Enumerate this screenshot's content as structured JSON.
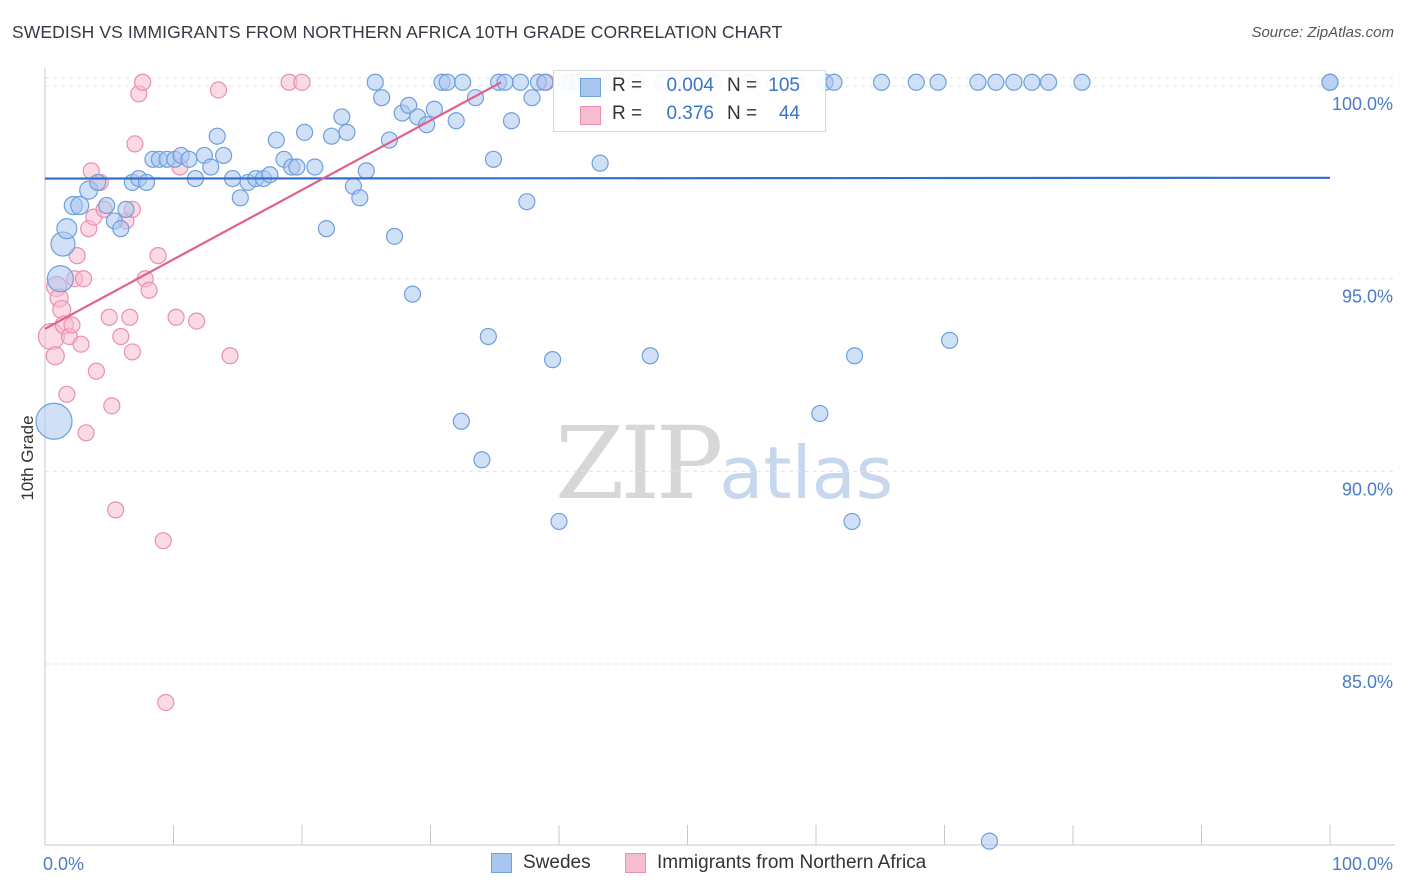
{
  "header": {
    "title": "SWEDISH VS IMMIGRANTS FROM NORTHERN AFRICA 10TH GRADE CORRELATION CHART",
    "source": "Source: ZipAtlas.com"
  },
  "legend": {
    "rows": [
      {
        "r_label": "R =",
        "r_value": "0.004",
        "n_label": "N =",
        "n_value": "105"
      },
      {
        "r_label": "R =",
        "r_value": "0.376",
        "n_label": "N =",
        "n_value": "44"
      }
    ]
  },
  "bottom_legend": {
    "swedes": "Swedes",
    "immigrants": "Immigrants from Northern Africa"
  },
  "watermark": {
    "zip": "ZIP",
    "atlas": "atlas"
  },
  "colors": {
    "swedes_fill": "#a9c6ee",
    "swedes_stroke": "#6f9fdc",
    "swedes_line": "#2f6fc9",
    "imm_fill": "#f6bcd0",
    "imm_stroke": "#ea8fb0",
    "imm_line": "#e0608f",
    "tick_text": "#4a7cc9",
    "grid": "#e3e3e3"
  },
  "chart_data": {
    "type": "scatter",
    "title": "SWEDISH VS IMMIGRANTS FROM NORTHERN AFRICA 10TH GRADE CORRELATION CHART",
    "xlabel": "",
    "ylabel": "10th Grade",
    "xlim": [
      0,
      100
    ],
    "ylim": [
      80.3,
      100.6
    ],
    "x_tick_labels": [
      "0.0%",
      "100.0%"
    ],
    "y_ticks": [
      100,
      95,
      90,
      85
    ],
    "y_tick_labels": [
      "100.0%",
      "95.0%",
      "90.0%",
      "85.0%"
    ],
    "grid": true,
    "series": [
      {
        "name": "Swedes",
        "R": 0.004,
        "N": 105,
        "trend": {
          "x": [
            0,
            100
          ],
          "y": [
            97.6,
            97.62
          ]
        },
        "points": [
          [
            0.7,
            91.3,
            18
          ],
          [
            1.2,
            95.0,
            13
          ],
          [
            1.4,
            95.9,
            12
          ],
          [
            1.7,
            96.3,
            10
          ],
          [
            2.2,
            96.9,
            9
          ],
          [
            2.7,
            96.9,
            9
          ],
          [
            3.4,
            97.3,
            9
          ],
          [
            4.1,
            97.5,
            8
          ],
          [
            4.8,
            96.9,
            8
          ],
          [
            5.4,
            96.5,
            8
          ],
          [
            5.9,
            96.3,
            8
          ],
          [
            6.3,
            96.8,
            8
          ],
          [
            6.8,
            97.5,
            8
          ],
          [
            7.3,
            97.6,
            8
          ],
          [
            7.9,
            97.5,
            8
          ],
          [
            8.4,
            98.1,
            8
          ],
          [
            8.9,
            98.1,
            8
          ],
          [
            9.5,
            98.1,
            8
          ],
          [
            10.1,
            98.1,
            8
          ],
          [
            10.6,
            98.2,
            8
          ],
          [
            11.2,
            98.1,
            8
          ],
          [
            11.7,
            97.6,
            8
          ],
          [
            12.4,
            98.2,
            8
          ],
          [
            12.9,
            97.9,
            8
          ],
          [
            13.4,
            98.7,
            8
          ],
          [
            13.9,
            98.2,
            8
          ],
          [
            14.6,
            97.6,
            8
          ],
          [
            15.2,
            97.1,
            8
          ],
          [
            15.8,
            97.5,
            8
          ],
          [
            16.4,
            97.6,
            8
          ],
          [
            17.0,
            97.6,
            8
          ],
          [
            17.5,
            97.7,
            8
          ],
          [
            18.0,
            98.6,
            8
          ],
          [
            18.6,
            98.1,
            8
          ],
          [
            19.2,
            97.9,
            8
          ],
          [
            19.6,
            97.9,
            8
          ],
          [
            20.2,
            98.8,
            8
          ],
          [
            21.0,
            97.9,
            8
          ],
          [
            21.9,
            96.3,
            8
          ],
          [
            22.3,
            98.7,
            8
          ],
          [
            23.1,
            99.2,
            8
          ],
          [
            23.5,
            98.8,
            8
          ],
          [
            24.0,
            97.4,
            8
          ],
          [
            24.5,
            97.1,
            8
          ],
          [
            25.0,
            97.8,
            8
          ],
          [
            25.7,
            100.1,
            8
          ],
          [
            26.2,
            99.7,
            8
          ],
          [
            26.8,
            98.6,
            8
          ],
          [
            27.2,
            96.1,
            8
          ],
          [
            27.8,
            99.3,
            8
          ],
          [
            28.3,
            99.5,
            8
          ],
          [
            28.6,
            94.6,
            8
          ],
          [
            29.0,
            99.2,
            8
          ],
          [
            29.7,
            99.0,
            8
          ],
          [
            30.3,
            99.4,
            8
          ],
          [
            30.9,
            100.1,
            8
          ],
          [
            31.3,
            100.1,
            8
          ],
          [
            32.0,
            99.1,
            8
          ],
          [
            32.4,
            91.3,
            8
          ],
          [
            32.5,
            100.1,
            8
          ],
          [
            33.5,
            99.7,
            8
          ],
          [
            34.0,
            90.3,
            8
          ],
          [
            34.5,
            93.5,
            8
          ],
          [
            34.9,
            98.1,
            8
          ],
          [
            35.3,
            100.1,
            8
          ],
          [
            35.8,
            100.1,
            8
          ],
          [
            36.3,
            99.1,
            8
          ],
          [
            37.0,
            100.1,
            8
          ],
          [
            37.5,
            97.0,
            8
          ],
          [
            37.9,
            99.7,
            8
          ],
          [
            38.4,
            100.1,
            8
          ],
          [
            38.9,
            100.1,
            8
          ],
          [
            39.5,
            92.9,
            8
          ],
          [
            40.0,
            88.7,
            8
          ],
          [
            40.6,
            100.1,
            8
          ],
          [
            41.0,
            100.1,
            8
          ],
          [
            41.5,
            100.1,
            8
          ],
          [
            42.1,
            100.1,
            8
          ],
          [
            42.6,
            100.1,
            8
          ],
          [
            43.2,
            98.0,
            8
          ],
          [
            44.0,
            100.1,
            8
          ],
          [
            46.0,
            100.1,
            8
          ],
          [
            47.1,
            93.0,
            8
          ],
          [
            48.1,
            100.1,
            8
          ],
          [
            50.0,
            100.1,
            8
          ],
          [
            52.0,
            100.1,
            8
          ],
          [
            54.8,
            100.1,
            8
          ],
          [
            56.8,
            100.1,
            8
          ],
          [
            58.5,
            100.1,
            8
          ],
          [
            60.3,
            91.5,
            8
          ],
          [
            60.7,
            100.1,
            8
          ],
          [
            61.4,
            100.1,
            8
          ],
          [
            62.8,
            88.7,
            8
          ],
          [
            63.0,
            93.0,
            8
          ],
          [
            65.1,
            100.1,
            8
          ],
          [
            67.8,
            100.1,
            8
          ],
          [
            69.5,
            100.1,
            8
          ],
          [
            70.4,
            93.4,
            8
          ],
          [
            72.6,
            100.1,
            8
          ],
          [
            74.0,
            100.1,
            8
          ],
          [
            75.4,
            100.1,
            8
          ],
          [
            76.8,
            100.1,
            8
          ],
          [
            78.1,
            100.1,
            8
          ],
          [
            73.5,
            80.4,
            8
          ],
          [
            80.7,
            100.1,
            8
          ],
          [
            100.0,
            100.1,
            8
          ],
          [
            100.0,
            100.1,
            8
          ]
        ]
      },
      {
        "name": "Immigrants from Northern Africa",
        "R": 0.376,
        "N": 44,
        "trend": {
          "x": [
            0,
            35.5
          ],
          "y": [
            93.7,
            100.1
          ]
        },
        "points": [
          [
            0.5,
            93.5,
            13
          ],
          [
            0.8,
            93.0,
            9
          ],
          [
            0.9,
            94.8,
            10
          ],
          [
            1.1,
            94.5,
            9
          ],
          [
            1.3,
            94.2,
            9
          ],
          [
            1.5,
            93.8,
            9
          ],
          [
            1.7,
            92.0,
            8
          ],
          [
            1.9,
            93.5,
            8
          ],
          [
            2.1,
            93.8,
            8
          ],
          [
            2.3,
            95.0,
            8
          ],
          [
            2.5,
            95.6,
            8
          ],
          [
            2.8,
            93.3,
            8
          ],
          [
            3.0,
            95.0,
            8
          ],
          [
            3.2,
            91.0,
            8
          ],
          [
            3.4,
            96.3,
            8
          ],
          [
            3.6,
            97.8,
            8
          ],
          [
            3.8,
            96.6,
            8
          ],
          [
            4.0,
            92.6,
            8
          ],
          [
            4.3,
            97.5,
            8
          ],
          [
            4.6,
            96.8,
            8
          ],
          [
            5.0,
            94.0,
            8
          ],
          [
            5.2,
            91.7,
            8
          ],
          [
            5.5,
            89.0,
            8
          ],
          [
            5.9,
            93.5,
            8
          ],
          [
            6.3,
            96.5,
            8
          ],
          [
            6.6,
            94.0,
            8
          ],
          [
            6.8,
            96.8,
            8
          ],
          [
            6.8,
            93.1,
            8
          ],
          [
            7.0,
            98.5,
            8
          ],
          [
            7.3,
            99.8,
            8
          ],
          [
            7.6,
            100.1,
            8
          ],
          [
            7.8,
            95.0,
            8
          ],
          [
            8.1,
            94.7,
            8
          ],
          [
            8.8,
            95.6,
            8
          ],
          [
            9.2,
            88.2,
            8
          ],
          [
            9.4,
            84.0,
            8
          ],
          [
            10.2,
            94.0,
            8
          ],
          [
            10.5,
            97.9,
            8
          ],
          [
            11.8,
            93.9,
            8
          ],
          [
            13.5,
            99.9,
            8
          ],
          [
            14.4,
            93.0,
            8
          ],
          [
            19.0,
            100.1,
            8
          ],
          [
            20.0,
            100.1,
            8
          ],
          [
            39.0,
            100.1,
            8
          ]
        ]
      }
    ]
  }
}
